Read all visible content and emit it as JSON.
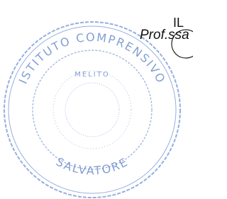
{
  "header": {
    "title": "IL",
    "signer": "Prof.ssa"
  },
  "stamp": {
    "top_text": "ISTITUTO COMPRENSIVO",
    "bottom_text": "SALVATORE",
    "inner_text": "MELITO"
  }
}
